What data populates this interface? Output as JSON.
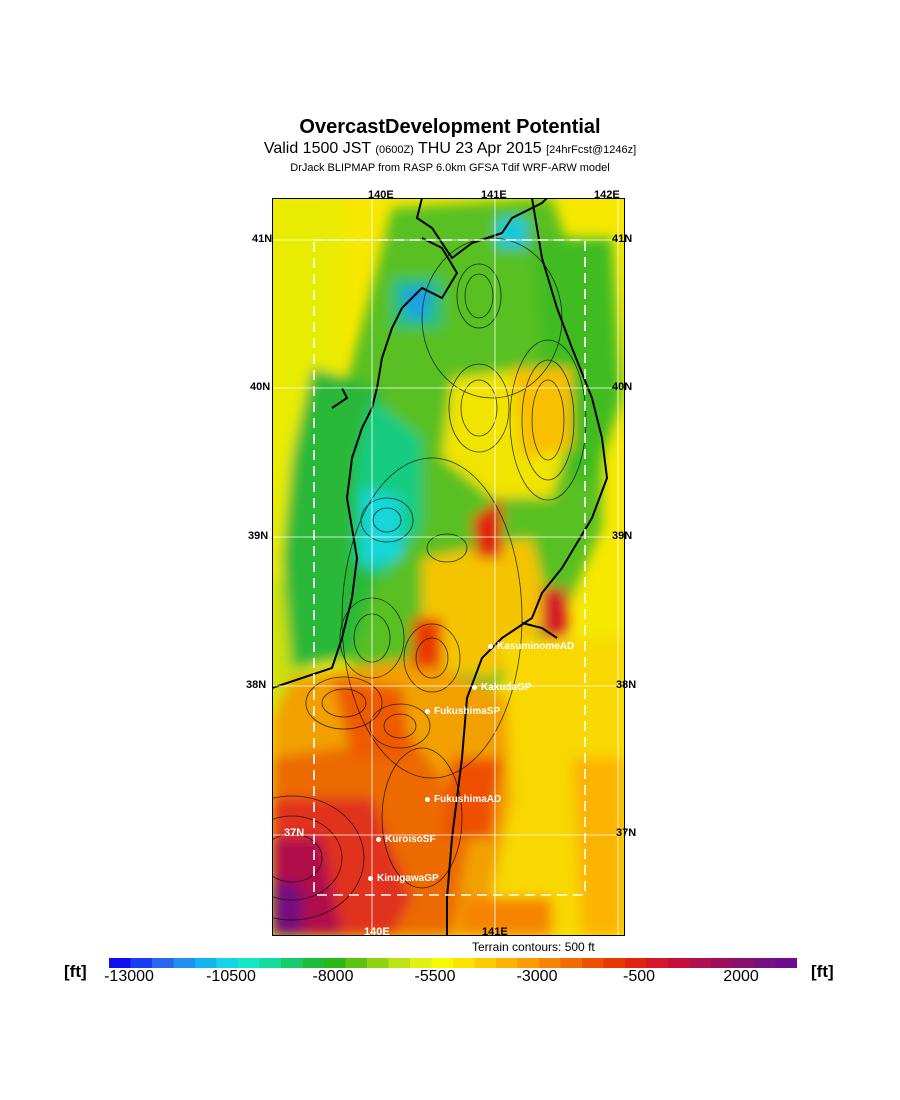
{
  "header": {
    "title": "OvercastDevelopment Potential",
    "subtitle_main_a": "Valid 1500 JST ",
    "subtitle_small_a": "(0600Z)",
    "subtitle_main_b": " THU 23 Apr 2015 ",
    "subtitle_small_b": "[24hrFcst@1246z]",
    "model_line": "DrJack BLIPMAP from RASP 6.0km GFSA Tdif WRF-ARW model"
  },
  "map": {
    "region": "Tohoku, Japan",
    "lon_labels_top": [
      "140E",
      "141E",
      "142E"
    ],
    "lon_labels_bottom": [
      "140E",
      "141E"
    ],
    "lat_labels": [
      "41N",
      "40N",
      "39N",
      "38N",
      "37N"
    ],
    "sites": [
      {
        "label": "KasuminomeAD"
      },
      {
        "label": "KakudaGP"
      },
      {
        "label": "FukushimaSP"
      },
      {
        "label": "FukushimaAD"
      },
      {
        "label": "KuroisoSF"
      },
      {
        "label": "KinugawaGP"
      }
    ],
    "contour_note": "Terrain contours: 500 ft"
  },
  "colorbar": {
    "unit_label": "[ft]",
    "ticks": [
      "-13000",
      "-10500",
      "-8000",
      "-5500",
      "-3000",
      "-500",
      "2000"
    ],
    "colors": [
      "#1010ee",
      "#1a3cf0",
      "#2868ee",
      "#1e90f0",
      "#10b4f0",
      "#12d6e8",
      "#14e6c8",
      "#14dc9c",
      "#16cc6a",
      "#1cbe3c",
      "#28b818",
      "#5cc410",
      "#90d410",
      "#bce414",
      "#e0f010",
      "#f8f800",
      "#fce400",
      "#fccc00",
      "#fcb400",
      "#fa9c00",
      "#f68400",
      "#f26a00",
      "#ee5000",
      "#e83800",
      "#e02410",
      "#d41828",
      "#c41038",
      "#b0104c",
      "#9c0e5c",
      "#881070",
      "#741080",
      "#6e0a8c"
    ]
  }
}
